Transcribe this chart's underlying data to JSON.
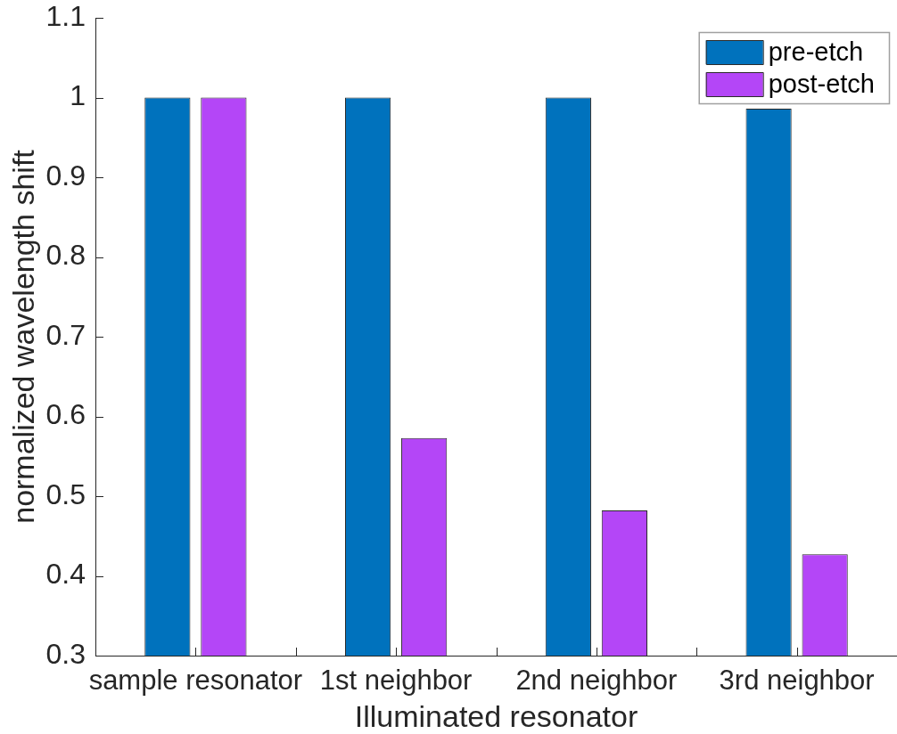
{
  "chart_data": {
    "type": "bar",
    "xlabel": "Illuminated resonator",
    "ylabel": "normalized wavelength shift",
    "categories": [
      "sample resonator",
      "1st neighbor",
      "2nd neighbor",
      "3rd neighbor"
    ],
    "series": [
      {
        "name": "pre-etch",
        "color": "#0072bd",
        "values": [
          1,
          1,
          1,
          0.986
        ]
      },
      {
        "name": "post-etch",
        "color": "#b446f7",
        "values": [
          1,
          0.573,
          0.482,
          0.427
        ]
      }
    ],
    "ylim": [
      0.3,
      1.1
    ],
    "yticks": [
      0.3,
      0.4,
      0.5,
      0.6,
      0.7,
      0.8,
      0.9,
      1,
      1.1
    ],
    "legend": "top right"
  }
}
